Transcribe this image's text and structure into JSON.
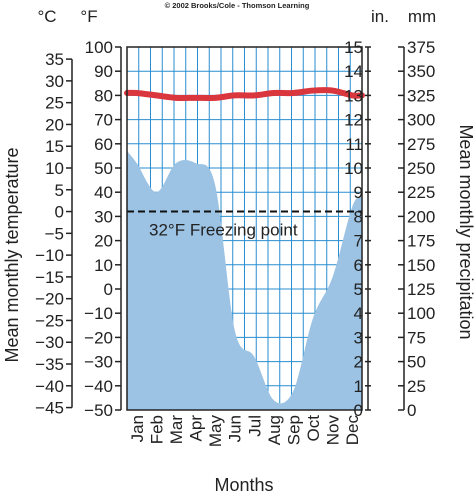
{
  "credit": "© 2002 Brooks/Cole - Thomson Learning",
  "chart_data": {
    "type": "climograph",
    "title": "",
    "xlabel": "Months",
    "ylabel_left": "Mean monthly temperature",
    "ylabel_right": "Mean monthly precipitation",
    "units": {
      "celsius": "°C",
      "fahrenheit": "°F",
      "inches": "in.",
      "millimeters": "mm"
    },
    "categories": [
      "Jan",
      "Feb",
      "Mar",
      "Apr",
      "May",
      "Jun",
      "Jul",
      "Aug",
      "Sep",
      "Oct",
      "Nov",
      "Dec"
    ],
    "temperature_f": [
      81,
      80,
      79,
      79,
      79,
      80,
      80,
      81,
      81,
      82,
      82,
      80
    ],
    "precipitation_in": [
      10.2,
      9.0,
      10.2,
      10.2,
      9.3,
      3.3,
      2.2,
      0.4,
      0.8,
      3.8,
      5.5,
      8.4
    ],
    "freezing_point_f": 32,
    "freezing_point_label": "32°F Freezing point",
    "fahrenheit_axis": {
      "min": -50,
      "max": 100,
      "step": 10
    },
    "celsius_axis": {
      "min": -45,
      "max": 35,
      "step": 5
    },
    "inches_axis": {
      "min": 0,
      "max": 15,
      "step": 1
    },
    "mm_axis": {
      "min": 0,
      "max": 375,
      "step": 25
    },
    "grid": true,
    "colors": {
      "temperature": "#d9363e",
      "precipitation": "#9cc3e4",
      "grid": "#2a8ed0",
      "freezing": "#111111"
    }
  }
}
